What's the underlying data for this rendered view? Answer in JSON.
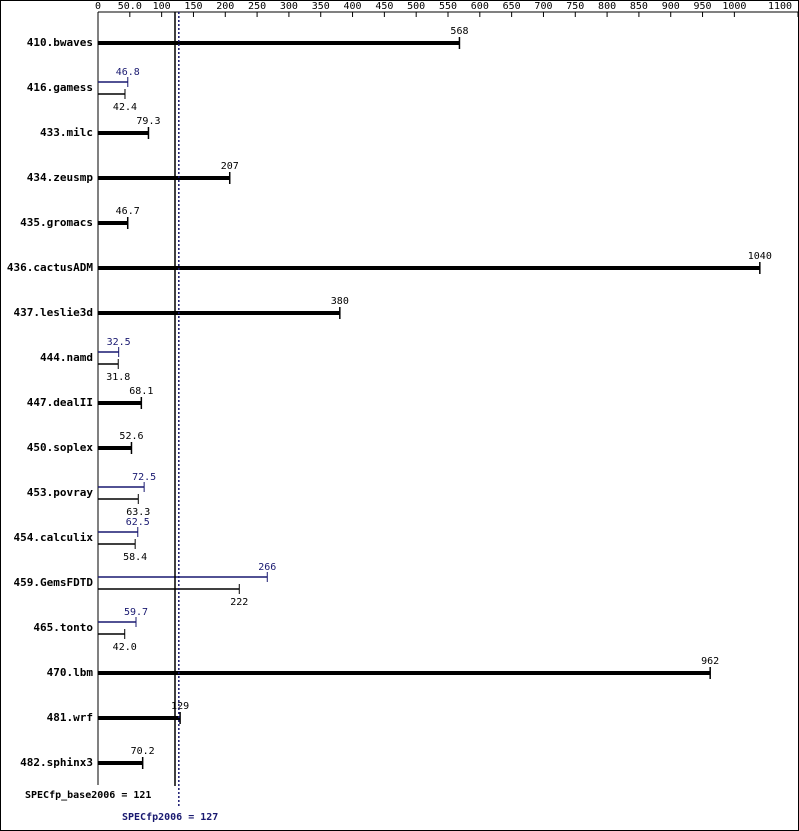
{
  "chart_data": {
    "type": "bar",
    "orientation": "horizontal",
    "categories": [
      "410.bwaves",
      "416.gamess",
      "433.milc",
      "434.zeusmp",
      "435.gromacs",
      "436.cactusADM",
      "437.leslie3d",
      "444.namd",
      "447.dealII",
      "450.soplex",
      "453.povray",
      "454.calculix",
      "459.GemsFDTD",
      "465.tonto",
      "470.lbm",
      "481.wrf",
      "482.sphinx3"
    ],
    "series": [
      {
        "color": "#000000",
        "values": [
          568,
          42.4,
          79.3,
          207,
          46.7,
          1040,
          380,
          31.8,
          68.1,
          52.6,
          63.3,
          58.4,
          222,
          42.0,
          962,
          129,
          70.2
        ],
        "value_labels": [
          "568",
          "42.4",
          "79.3",
          "207",
          "46.7",
          "1040",
          "380",
          "31.8",
          "68.1",
          "52.6",
          "63.3",
          "58.4",
          "222",
          "42.0",
          "962",
          "129",
          "70.2"
        ]
      },
      {
        "color": "#191970",
        "values": [
          null,
          46.8,
          null,
          null,
          null,
          null,
          null,
          32.5,
          null,
          null,
          72.5,
          62.5,
          266,
          59.7,
          null,
          null,
          null
        ]
      }
    ],
    "xlim": [
      0,
      1100
    ],
    "xticks": [
      0,
      {
        "value": 50,
        "label": "50.0"
      },
      100,
      150,
      200,
      250,
      300,
      350,
      400,
      450,
      500,
      550,
      600,
      650,
      700,
      750,
      800,
      850,
      900,
      950,
      1000,
      1100
    ],
    "reference_lines": [
      {
        "label": "SPECfp_base2006 = 121",
        "value": 121,
        "color": "#000000",
        "dashed": false
      },
      {
        "label": "SPECfp2006 = 127",
        "value": 127,
        "color": "#191970",
        "dashed": true
      }
    ]
  }
}
